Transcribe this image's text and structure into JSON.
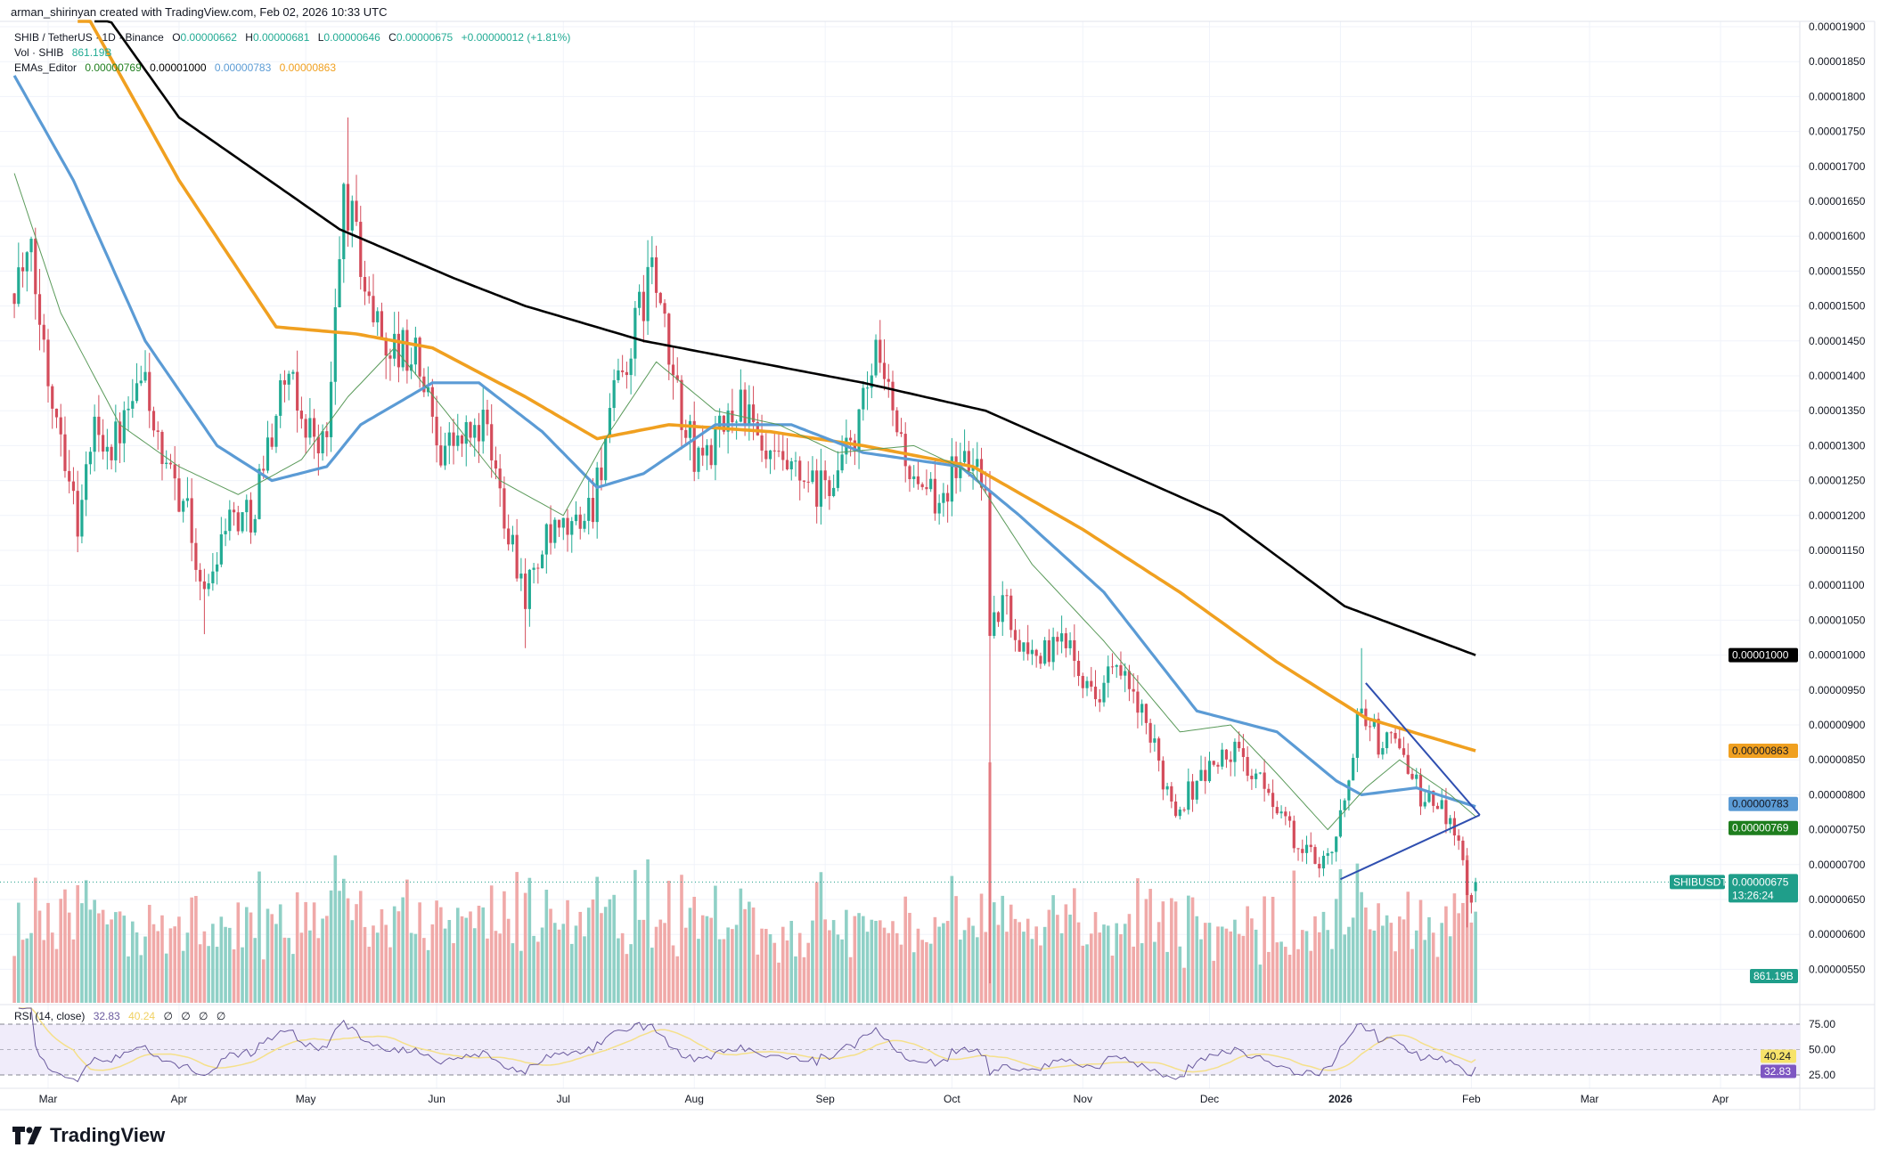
{
  "header": {
    "credit": "arman_shirinyan created with TradingView.com, Feb 02, 2026 10:33 UTC"
  },
  "legend": {
    "symbol": "SHIB / TetherUS · 1D · Binance",
    "open_label": "O",
    "open": "0.00000662",
    "high_label": "H",
    "high": "0.00000681",
    "low_label": "L",
    "low": "0.00000646",
    "close_label": "C",
    "close": "0.00000675",
    "change": "+0.00000012 (+1.81%)",
    "vol_label": "Vol · SHIB",
    "vol_value": "861.19B",
    "ema_label": "EMAs_Editor",
    "ema_values": [
      "0.00000769",
      "0.00001000",
      "0.00000783",
      "0.00000863"
    ]
  },
  "rsi_legend": {
    "label": "RSI (14, close)",
    "rsi": "32.83",
    "ma": "40.24",
    "extras": [
      "∅",
      "∅",
      "∅",
      "∅"
    ]
  },
  "axis_badges": {
    "ema200": "0.00001000",
    "ema100": "0.00000863",
    "ema50": "0.00000783",
    "ema20": "0.00000769",
    "symbol_tag": "SHIBUSDT",
    "last_price": "0.00000675",
    "countdown": "13:26:24",
    "volume": "861.19B",
    "rsi_ma": "40.24",
    "rsi": "32.83"
  },
  "logo": {
    "text": "TradingView"
  },
  "colors": {
    "up": "#22ab94",
    "down": "#d44c5b",
    "vol_up": "#8fd0c6",
    "vol_down": "#f0a9a8",
    "ema20": "#5a9a5a",
    "ema50": "#5b9bd5",
    "ema100": "#f0a020",
    "ema200": "#000000",
    "triangle": "#2f4fb0",
    "rsi": "#6a5a9e",
    "rsi_ma": "#f5e08a",
    "rsi_band": "#f0ecfa",
    "badge_green": "#1e7e1e",
    "badge_teal": "#1f9e8a"
  },
  "chart_data": {
    "type": "candlestick",
    "symbol": "SHIB / TetherUS",
    "interval": "1D",
    "price_ticks": [
      "0.00000550",
      "0.00000600",
      "0.00000650",
      "0.00000700",
      "0.00000750",
      "0.00000800",
      "0.00000850",
      "0.00000900",
      "0.00000950",
      "0.00001000",
      "0.00001050",
      "0.00001100",
      "0.00001150",
      "0.00001200",
      "0.00001250",
      "0.00001300",
      "0.00001350",
      "0.00001400",
      "0.00001450",
      "0.00001500",
      "0.00001550",
      "0.00001600",
      "0.00001650",
      "0.00001700",
      "0.00001750",
      "0.00001800",
      "0.00001850",
      "0.00001900"
    ],
    "ylim": [
      5.4e-06,
      1.92e-05
    ],
    "time_ticks": [
      [
        "Mar",
        "2025-03-01"
      ],
      [
        "Apr",
        "2025-04-01"
      ],
      [
        "May",
        "2025-05-01"
      ],
      [
        "Jun",
        "2025-06-01"
      ],
      [
        "Jul",
        "2025-07-01"
      ],
      [
        "Aug",
        "2025-08-01"
      ],
      [
        "Sep",
        "2025-09-01"
      ],
      [
        "Oct",
        "2025-10-01"
      ],
      [
        "Nov",
        "2025-11-01"
      ],
      [
        "Dec",
        "2025-12-01"
      ],
      [
        "2026",
        "2026-01-01"
      ],
      [
        "Feb",
        "2026-02-01"
      ],
      [
        "Mar",
        "2026-03-01"
      ],
      [
        "Apr",
        "2026-04-01"
      ]
    ],
    "xlim": [
      "2025-02-21",
      "2026-04-25"
    ],
    "close_path": [
      [
        "2025-02-21",
        1.54e-05
      ],
      [
        "2025-02-25",
        1.56e-05
      ],
      [
        "2025-03-01",
        1.4e-05
      ],
      [
        "2025-03-04",
        1.33e-05
      ],
      [
        "2025-03-08",
        1.19e-05
      ],
      [
        "2025-03-12",
        1.33e-05
      ],
      [
        "2025-03-16",
        1.3e-05
      ],
      [
        "2025-03-20",
        1.34e-05
      ],
      [
        "2025-03-24",
        1.4e-05
      ],
      [
        "2025-03-28",
        1.26e-05
      ],
      [
        "2025-04-02",
        1.23e-05
      ],
      [
        "2025-04-07",
        1.08e-05
      ],
      [
        "2025-04-12",
        1.2e-05
      ],
      [
        "2025-04-18",
        1.2e-05
      ],
      [
        "2025-04-22",
        1.3e-05
      ],
      [
        "2025-04-26",
        1.4e-05
      ],
      [
        "2025-05-01",
        1.33e-05
      ],
      [
        "2025-05-06",
        1.3e-05
      ],
      [
        "2025-05-10",
        1.66e-05
      ],
      [
        "2025-05-13",
        1.6e-05
      ],
      [
        "2025-05-16",
        1.5e-05
      ],
      [
        "2025-05-21",
        1.44e-05
      ],
      [
        "2025-05-27",
        1.43e-05
      ],
      [
        "2025-06-02",
        1.3e-05
      ],
      [
        "2025-06-08",
        1.31e-05
      ],
      [
        "2025-06-12",
        1.33e-05
      ],
      [
        "2025-06-17",
        1.21e-05
      ],
      [
        "2025-06-22",
        1.09e-05
      ],
      [
        "2025-06-27",
        1.16e-05
      ],
      [
        "2025-07-03",
        1.18e-05
      ],
      [
        "2025-07-08",
        1.22e-05
      ],
      [
        "2025-07-12",
        1.34e-05
      ],
      [
        "2025-07-17",
        1.44e-05
      ],
      [
        "2025-07-22",
        1.56e-05
      ],
      [
        "2025-07-26",
        1.42e-05
      ],
      [
        "2025-08-01",
        1.28e-05
      ],
      [
        "2025-08-06",
        1.3e-05
      ],
      [
        "2025-08-12",
        1.37e-05
      ],
      [
        "2025-08-17",
        1.28e-05
      ],
      [
        "2025-08-23",
        1.26e-05
      ],
      [
        "2025-08-30",
        1.23e-05
      ],
      [
        "2025-09-04",
        1.26e-05
      ],
      [
        "2025-09-09",
        1.33e-05
      ],
      [
        "2025-09-13",
        1.42e-05
      ],
      [
        "2025-09-18",
        1.33e-05
      ],
      [
        "2025-09-23",
        1.22e-05
      ],
      [
        "2025-09-28",
        1.23e-05
      ],
      [
        "2025-10-03",
        1.28e-05
      ],
      [
        "2025-10-09",
        1.26e-05
      ],
      [
        "2025-10-10",
        1.02e-05
      ],
      [
        "2025-10-13",
        1.08e-05
      ],
      [
        "2025-10-18",
        1.01e-05
      ],
      [
        "2025-10-24",
        1e-05
      ],
      [
        "2025-10-29",
        1.03e-05
      ],
      [
        "2025-11-03",
        9.4e-06
      ],
      [
        "2025-11-08",
        9.8e-06
      ],
      [
        "2025-11-13",
        9.4e-06
      ],
      [
        "2025-11-18",
        8.6e-06
      ],
      [
        "2025-11-23",
        7.8e-06
      ],
      [
        "2025-11-28",
        8.2e-06
      ],
      [
        "2025-12-03",
        8.5e-06
      ],
      [
        "2025-12-08",
        8.6e-06
      ],
      [
        "2025-12-12",
        8.2e-06
      ],
      [
        "2025-12-17",
        7.9e-06
      ],
      [
        "2025-12-22",
        7.2e-06
      ],
      [
        "2025-12-27",
        7.1e-06
      ],
      [
        "2025-12-31",
        7.3e-06
      ],
      [
        "2026-01-02",
        8e-06
      ],
      [
        "2026-01-05",
        9e-06
      ],
      [
        "2026-01-07",
        9.2e-06
      ],
      [
        "2026-01-11",
        8.6e-06
      ],
      [
        "2026-01-14",
        9e-06
      ],
      [
        "2026-01-17",
        8.3e-06
      ],
      [
        "2026-01-21",
        7.9e-06
      ],
      [
        "2026-01-25",
        7.8e-06
      ],
      [
        "2026-01-28",
        7.6e-06
      ],
      [
        "2026-01-30",
        7e-06
      ],
      [
        "2026-01-31",
        6.6e-06
      ],
      [
        "2026-02-01",
        6.6e-06
      ],
      [
        "2026-02-02",
        6.75e-06
      ]
    ],
    "wick_extremes": [
      [
        "2025-05-11",
        "high",
        1.77e-05
      ],
      [
        "2025-07-22",
        "high",
        1.6e-05
      ],
      [
        "2025-09-14",
        "high",
        1.48e-05
      ],
      [
        "2025-06-22",
        "low",
        1.01e-05
      ],
      [
        "2025-04-07",
        "low",
        1.03e-05
      ],
      [
        "2025-10-10",
        "low",
        5.3e-06
      ],
      [
        "2026-01-06",
        "high",
        1.01e-05
      ],
      [
        "2026-01-31",
        "low",
        6.1e-06
      ]
    ],
    "last_candle": {
      "date": "2026-02-02",
      "open": 6.62e-06,
      "high": 6.81e-06,
      "low": 6.46e-06,
      "close": 6.75e-06
    },
    "ema_lines": {
      "ema200": [
        [
          "2025-03-12",
          1.94e-05
        ],
        [
          "2025-04-01",
          1.77e-05
        ],
        [
          "2025-05-09",
          1.61e-05
        ],
        [
          "2025-06-05",
          1.54e-05
        ],
        [
          "2025-06-22",
          1.5e-05
        ],
        [
          "2025-07-20",
          1.45e-05
        ],
        [
          "2025-09-10",
          1.39e-05
        ],
        [
          "2025-10-09",
          1.35e-05
        ],
        [
          "2025-12-04",
          1.2e-05
        ],
        [
          "2026-01-02",
          1.07e-05
        ],
        [
          "2026-02-02",
          1e-05
        ]
      ],
      "ema100": [
        [
          "2025-03-08",
          1.94e-05
        ],
        [
          "2025-04-01",
          1.68e-05
        ],
        [
          "2025-04-24",
          1.47e-05
        ],
        [
          "2025-05-13",
          1.46e-05
        ],
        [
          "2025-05-31",
          1.44e-05
        ],
        [
          "2025-06-22",
          1.37e-05
        ],
        [
          "2025-07-09",
          1.31e-05
        ],
        [
          "2025-07-26",
          1.33e-05
        ],
        [
          "2025-08-19",
          1.32e-05
        ],
        [
          "2025-09-10",
          1.3e-05
        ],
        [
          "2025-10-06",
          1.27e-05
        ],
        [
          "2025-11-01",
          1.18e-05
        ],
        [
          "2025-11-24",
          1.09e-05
        ],
        [
          "2025-12-17",
          9.9e-06
        ],
        [
          "2026-01-07",
          9.1e-06
        ],
        [
          "2026-01-18",
          8.9e-06
        ],
        [
          "2026-02-02",
          8.63e-06
        ]
      ],
      "ema50": [
        [
          "2025-02-21",
          1.83e-05
        ],
        [
          "2025-03-07",
          1.68e-05
        ],
        [
          "2025-03-24",
          1.45e-05
        ],
        [
          "2025-04-10",
          1.3e-05
        ],
        [
          "2025-04-23",
          1.25e-05
        ],
        [
          "2025-05-06",
          1.27e-05
        ],
        [
          "2025-05-14",
          1.33e-05
        ],
        [
          "2025-05-31",
          1.39e-05
        ],
        [
          "2025-06-11",
          1.39e-05
        ],
        [
          "2025-06-26",
          1.32e-05
        ],
        [
          "2025-07-09",
          1.24e-05
        ],
        [
          "2025-07-20",
          1.26e-05
        ],
        [
          "2025-08-06",
          1.33e-05
        ],
        [
          "2025-08-24",
          1.33e-05
        ],
        [
          "2025-09-10",
          1.29e-05
        ],
        [
          "2025-10-03",
          1.27e-05
        ],
        [
          "2025-10-17",
          1.2e-05
        ],
        [
          "2025-11-06",
          1.09e-05
        ],
        [
          "2025-11-28",
          9.2e-06
        ],
        [
          "2025-12-17",
          8.9e-06
        ],
        [
          "2025-12-31",
          8.2e-06
        ],
        [
          "2026-01-06",
          8e-06
        ],
        [
          "2026-01-19",
          8.1e-06
        ],
        [
          "2026-02-02",
          7.83e-06
        ]
      ],
      "ema20": [
        [
          "2025-02-21",
          1.69e-05
        ],
        [
          "2025-03-04",
          1.49e-05
        ],
        [
          "2025-03-18",
          1.33e-05
        ],
        [
          "2025-04-01",
          1.27e-05
        ],
        [
          "2025-04-15",
          1.23e-05
        ],
        [
          "2025-04-30",
          1.28e-05
        ],
        [
          "2025-05-11",
          1.37e-05
        ],
        [
          "2025-05-22",
          1.44e-05
        ],
        [
          "2025-06-03",
          1.35e-05
        ],
        [
          "2025-06-16",
          1.25e-05
        ],
        [
          "2025-07-01",
          1.2e-05
        ],
        [
          "2025-07-12",
          1.32e-05
        ],
        [
          "2025-07-23",
          1.42e-05
        ],
        [
          "2025-08-06",
          1.35e-05
        ],
        [
          "2025-08-21",
          1.33e-05
        ],
        [
          "2025-09-04",
          1.29e-05
        ],
        [
          "2025-09-22",
          1.3e-05
        ],
        [
          "2025-10-06",
          1.26e-05
        ],
        [
          "2025-10-20",
          1.13e-05
        ],
        [
          "2025-11-06",
          1.02e-05
        ],
        [
          "2025-11-24",
          8.9e-06
        ],
        [
          "2025-12-06",
          9e-06
        ],
        [
          "2025-12-17",
          8.3e-06
        ],
        [
          "2025-12-29",
          7.5e-06
        ],
        [
          "2026-01-07",
          8.1e-06
        ],
        [
          "2026-01-15",
          8.5e-06
        ],
        [
          "2026-01-27",
          8e-06
        ],
        [
          "2026-02-02",
          7.69e-06
        ]
      ]
    },
    "triangle": {
      "upper": [
        [
          "2026-01-07",
          9.6e-06
        ],
        [
          "2026-02-03",
          7.71e-06
        ]
      ],
      "lower": [
        [
          "2026-01-01",
          6.79e-06
        ],
        [
          "2026-02-03",
          7.71e-06
        ]
      ]
    },
    "rsi": {
      "period": 14,
      "levels": [
        25,
        50,
        75
      ],
      "level_labels": [
        "25.00",
        "50.00",
        "75.00"
      ],
      "last": 32.83,
      "ma_last": 40.24
    }
  }
}
